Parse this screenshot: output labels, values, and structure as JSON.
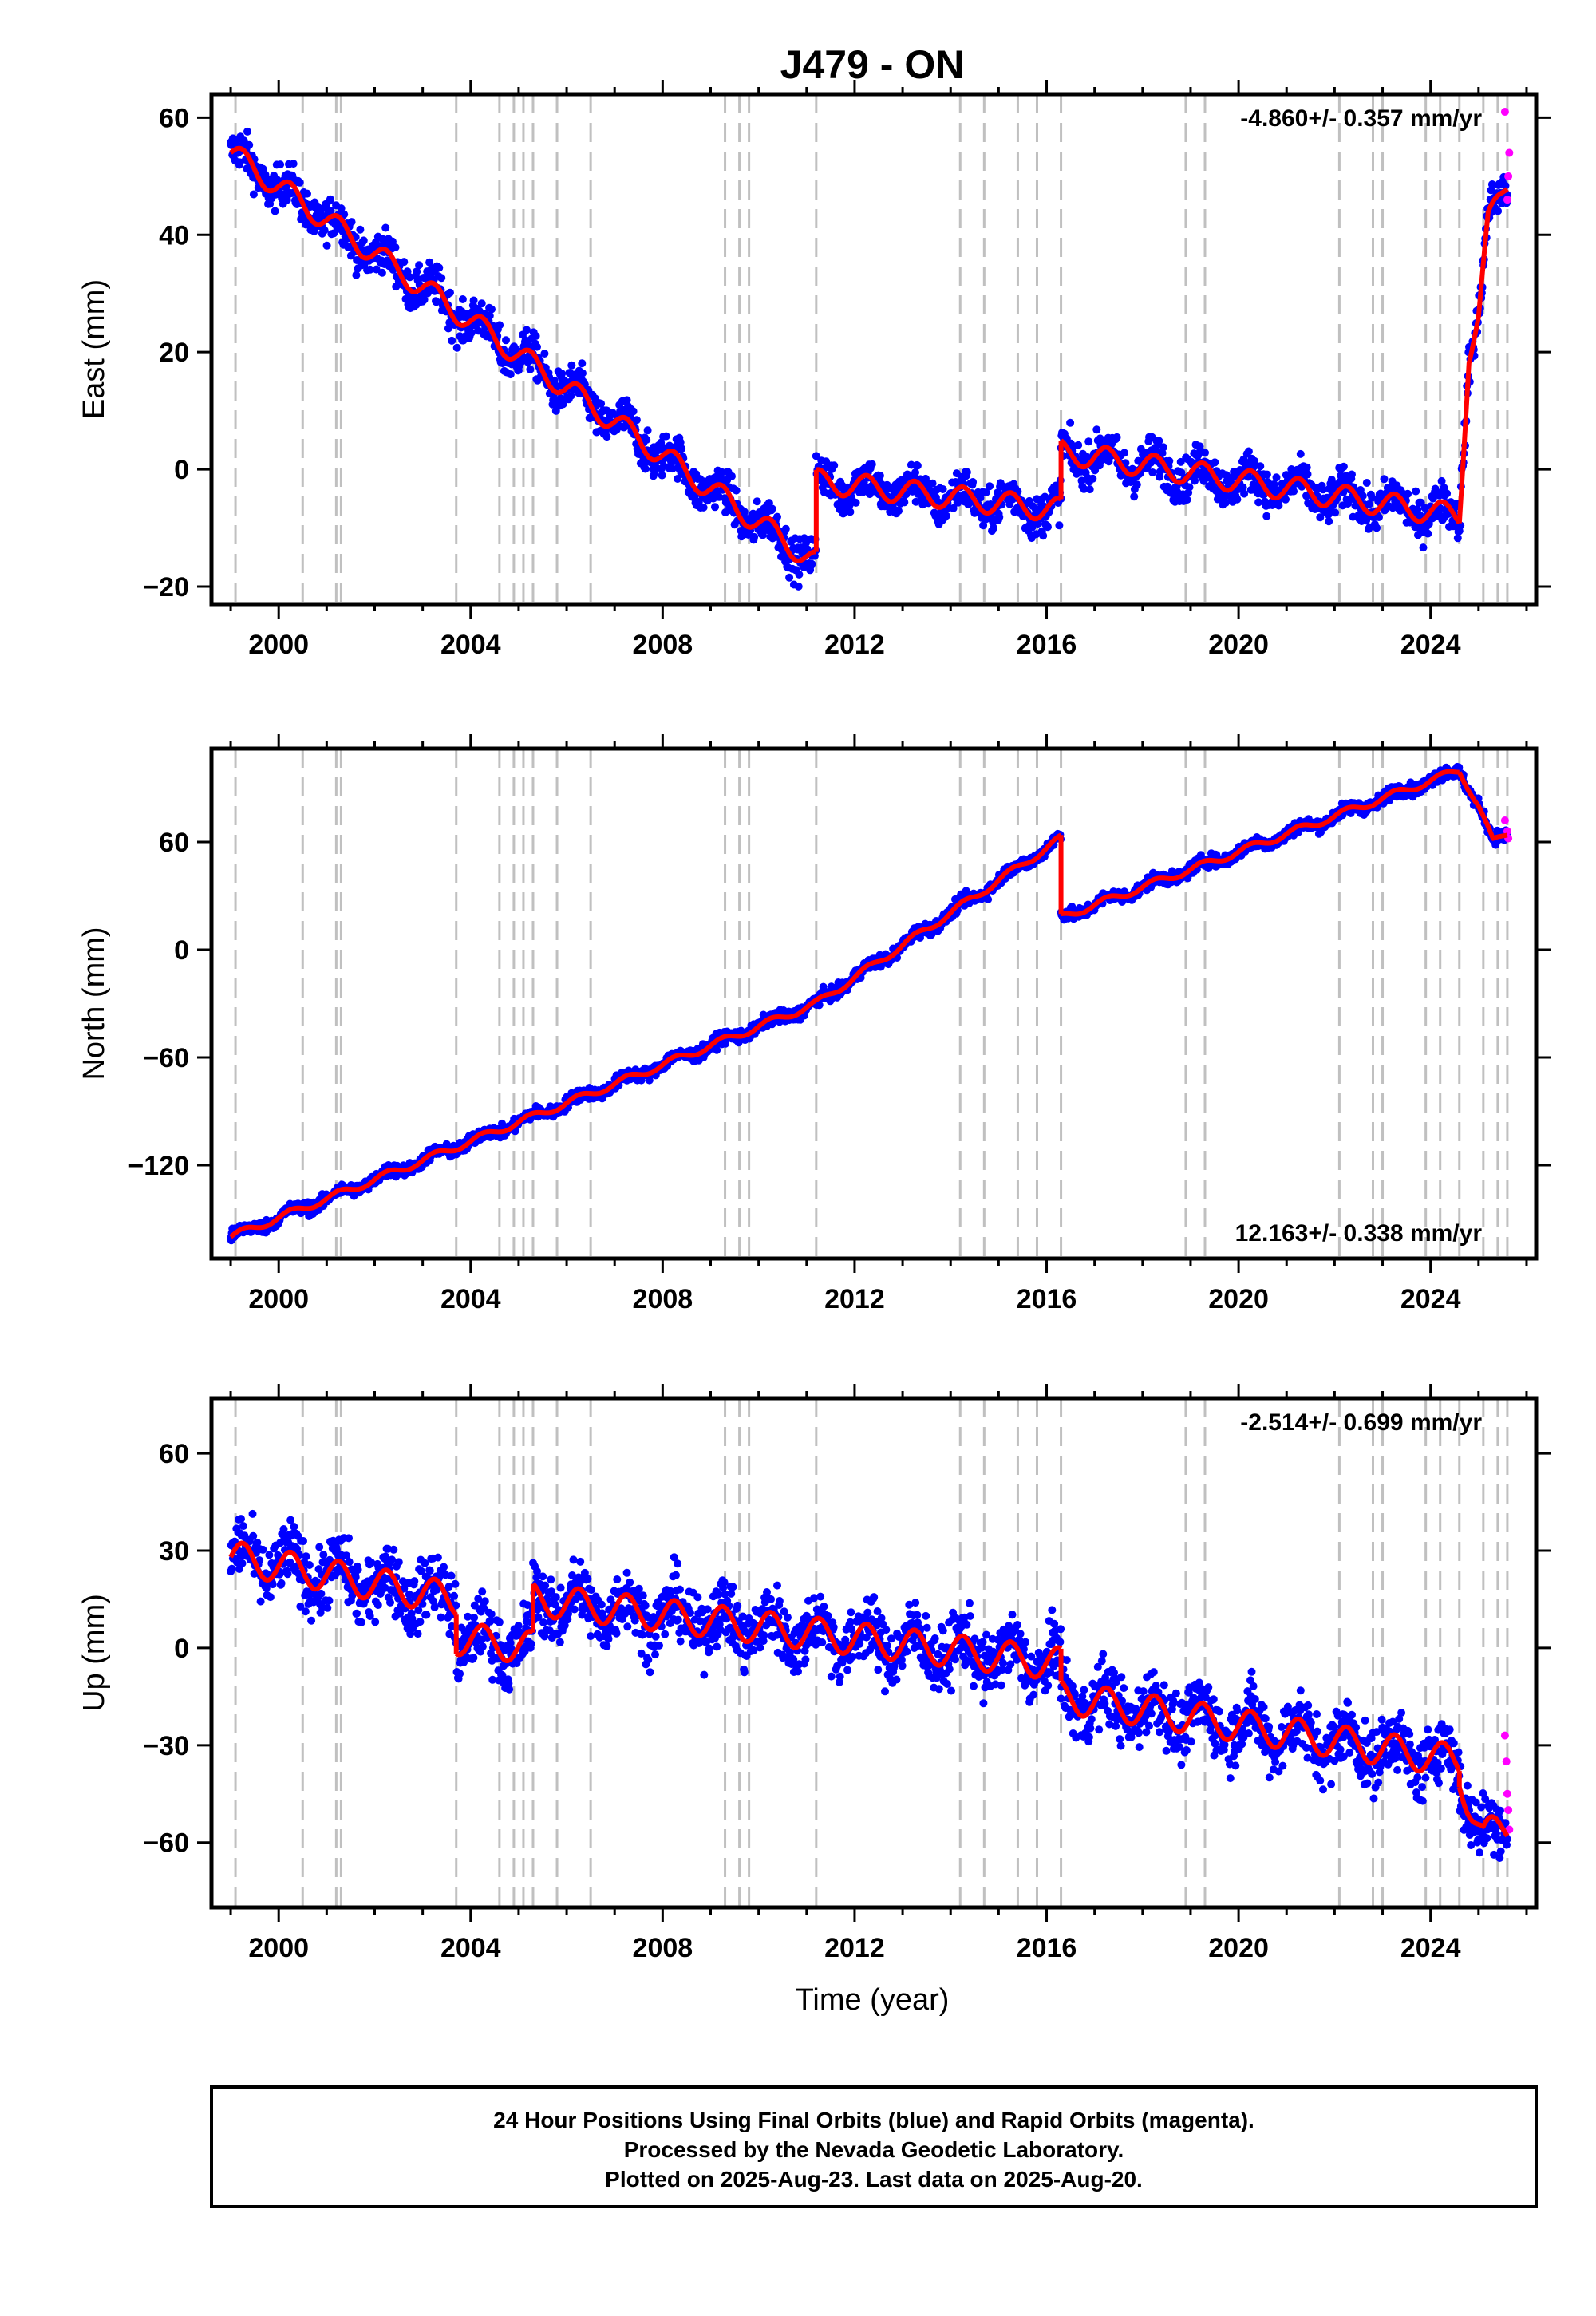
{
  "title": "J479 - ON",
  "x_axis_label": "Time (year)",
  "colors": {
    "final_orbits": "#0000ff",
    "rapid_orbits": "#ff00ff",
    "model_fit": "#ff0000",
    "event_lines": "#c0c0c0",
    "frame": "#000000"
  },
  "footer": {
    "line1": "24 Hour Positions Using Final Orbits (blue) and Rapid Orbits (magenta).",
    "line2": "Processed by the Nevada Geodetic Laboratory.",
    "line3": "Plotted on 2025-Aug-23. Last data on 2025-Aug-20."
  },
  "chart_data": [
    {
      "type": "scatter",
      "ylabel": "East (mm)",
      "rate_text": "-4.860+/- 0.357 mm/yr",
      "rate_position": "top-right",
      "xlim": [
        1998.6,
        2026.2
      ],
      "ylim": [
        -23,
        64
      ],
      "x_ticks": [
        2000,
        2004,
        2008,
        2012,
        2016,
        2020,
        2024
      ],
      "y_ticks": [
        -20,
        0,
        20,
        40,
        60
      ],
      "event_lines": [
        1999.1,
        2000.5,
        2001.2,
        2001.3,
        2003.7,
        2004.6,
        2004.9,
        2005.1,
        2005.3,
        2005.8,
        2006.5,
        2009.3,
        2009.6,
        2009.8,
        2011.2,
        2014.2,
        2014.7,
        2015.4,
        2015.8,
        2016.3,
        2018.9,
        2019.3,
        2022.1,
        2022.8,
        2023.0,
        2023.9,
        2024.2,
        2024.6,
        2025.1,
        2025.4,
        2025.6
      ],
      "trend_segments": [
        {
          "x": [
            1999.0,
            2011.2
          ],
          "y": [
            54,
            -16
          ]
        },
        {
          "x": [
            2011.2,
            2016.3
          ],
          "y": [
            -2,
            -7
          ]
        },
        {
          "x": [
            2016.3,
            2024.6
          ],
          "y": [
            3,
            -8
          ]
        },
        {
          "x": [
            2024.6,
            2024.8,
            2025.0,
            2025.2,
            2025.6
          ],
          "y": [
            -8,
            20,
            26,
            42,
            49
          ]
        }
      ],
      "seasonal_amplitude": 2.0,
      "scatter_noise": 2.5,
      "rapid_points": {
        "x": [
          2025.55,
          2025.6,
          2025.62,
          2025.64
        ],
        "y": [
          61,
          46,
          50,
          54
        ]
      }
    },
    {
      "type": "scatter",
      "ylabel": "North (mm)",
      "rate_text": "12.163+/- 0.338 mm/yr",
      "rate_position": "bottom-right",
      "xlim": [
        1998.6,
        2026.2
      ],
      "ylim": [
        -172,
        112
      ],
      "x_ticks": [
        2000,
        2004,
        2008,
        2012,
        2016,
        2020,
        2024
      ],
      "y_ticks": [
        -120,
        -60,
        0,
        60
      ],
      "event_lines": [
        1999.1,
        2000.5,
        2001.2,
        2001.3,
        2003.7,
        2004.6,
        2004.9,
        2005.1,
        2005.3,
        2005.8,
        2006.5,
        2009.3,
        2009.6,
        2009.8,
        2011.2,
        2014.2,
        2014.7,
        2015.4,
        2015.8,
        2016.3,
        2018.9,
        2019.3,
        2022.1,
        2022.8,
        2023.0,
        2023.9,
        2024.2,
        2024.6,
        2025.1,
        2025.4,
        2025.6
      ],
      "trend_segments": [
        {
          "x": [
            1999.0,
            2011.2,
            2016.3
          ],
          "y": [
            -160,
            -30,
            62
          ]
        },
        {
          "x": [
            2016.3,
            2024.6
          ],
          "y": [
            18,
            100
          ]
        },
        {
          "x": [
            2024.6,
            2025.0,
            2025.3,
            2025.6
          ],
          "y": [
            100,
            80,
            60,
            65
          ]
        }
      ],
      "seasonal_amplitude": 2.0,
      "scatter_noise": 2.5,
      "rapid_points": {
        "x": [
          2025.55,
          2025.6,
          2025.62
        ],
        "y": [
          72,
          66,
          62
        ]
      }
    },
    {
      "type": "scatter",
      "ylabel": "Up (mm)",
      "rate_text": "-2.514+/- 0.699 mm/yr",
      "rate_position": "top-right",
      "xlim": [
        1998.6,
        2026.2
      ],
      "ylim": [
        -80,
        77
      ],
      "x_ticks": [
        2000,
        2004,
        2008,
        2012,
        2016,
        2020,
        2024
      ],
      "y_ticks": [
        -60,
        -30,
        0,
        30,
        60
      ],
      "event_lines": [
        1999.1,
        2000.5,
        2001.2,
        2001.3,
        2003.7,
        2004.6,
        2004.9,
        2005.1,
        2005.3,
        2005.8,
        2006.5,
        2009.3,
        2009.6,
        2009.8,
        2011.2,
        2014.2,
        2014.7,
        2015.4,
        2015.8,
        2016.3,
        2018.9,
        2019.3,
        2022.1,
        2022.8,
        2023.0,
        2023.9,
        2024.2,
        2024.6,
        2025.1,
        2025.4,
        2025.6
      ],
      "trend_segments": [
        {
          "x": [
            1999.0,
            2003.7
          ],
          "y": [
            28,
            15
          ]
        },
        {
          "x": [
            2003.7,
            2005.3
          ],
          "y": [
            3,
            0
          ]
        },
        {
          "x": [
            2005.3,
            2016.3
          ],
          "y": [
            15,
            -5
          ]
        },
        {
          "x": [
            2016.3,
            2024.6
          ],
          "y": [
            -15,
            -35
          ]
        },
        {
          "x": [
            2024.6,
            2025.1,
            2025.6
          ],
          "y": [
            -40,
            -58,
            -55
          ]
        }
      ],
      "seasonal_amplitude": 5.0,
      "scatter_noise": 7.0,
      "rapid_points": {
        "x": [
          2025.55,
          2025.58,
          2025.6,
          2025.62,
          2025.64
        ],
        "y": [
          -27,
          -35,
          -45,
          -50,
          -56
        ]
      }
    }
  ]
}
